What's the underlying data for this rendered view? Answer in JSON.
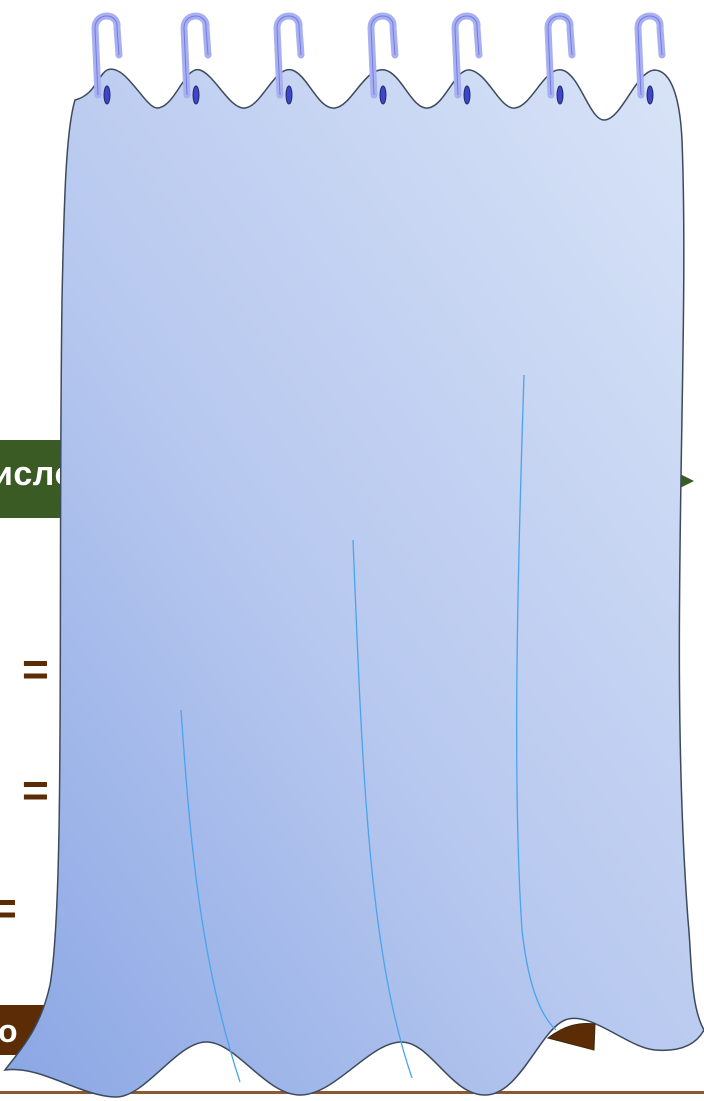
{
  "slide": {
    "green_box_text": "исло",
    "brown_box_text": "о",
    "equals": [
      "=",
      "=",
      "="
    ]
  },
  "colors": {
    "curtain_light": "#d6e1f6",
    "curtain_dark": "#8fabe6",
    "curtain_outline": "#3d4a5c",
    "fold_lines": "#4aa3ee",
    "ring_fill": "#a8b0f2",
    "ring_stroke": "#5c64d8",
    "green_box": "#3b5b25",
    "brown_box": "#5b2c06",
    "bottom_line": "#8a5a32"
  },
  "icons": {
    "curtain": "curtain-icon",
    "ring": "curtain-ring-icon"
  }
}
